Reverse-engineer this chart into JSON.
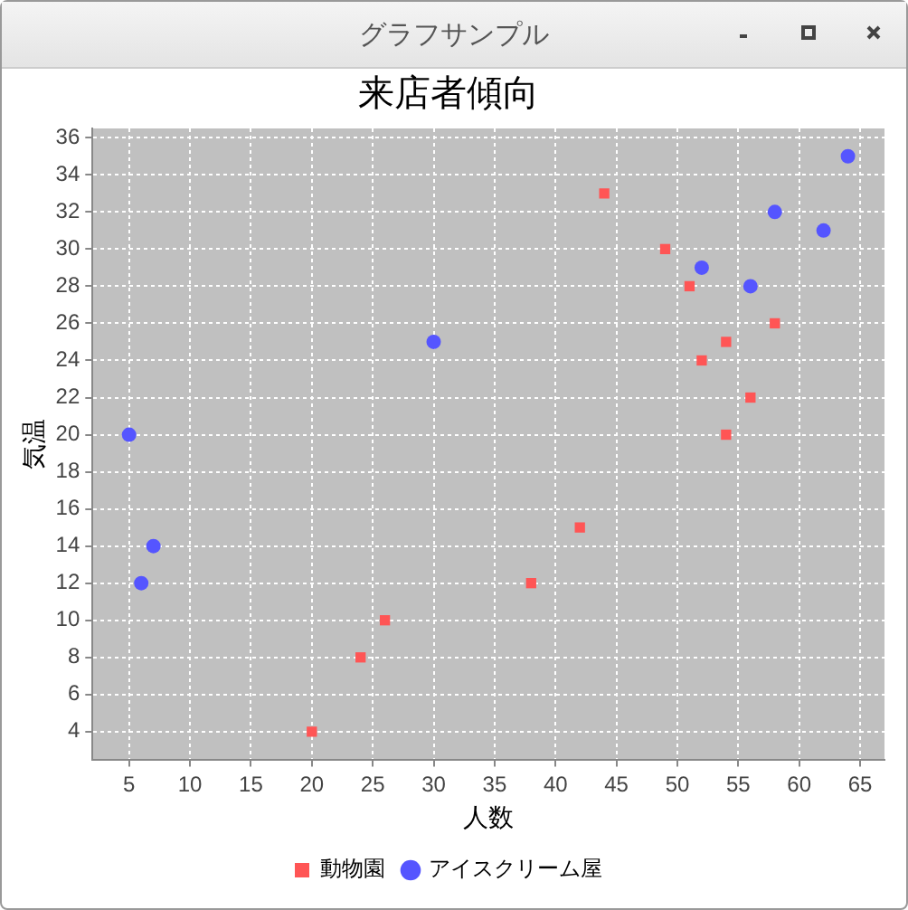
{
  "chart_data": {
    "type": "scatter",
    "title": "来店者傾向",
    "xlabel": "人数",
    "ylabel": "気温",
    "annotations": [
      "グラフサンプル"
    ],
    "series": [
      {
        "name": "動物園",
        "color": "#ff5555",
        "marker": "square",
        "x": [
          20,
          24,
          26,
          38,
          42,
          44,
          49,
          51,
          52,
          54,
          54,
          56,
          58
        ],
        "values": [
          4,
          8,
          10,
          12,
          15,
          33,
          30,
          28,
          24,
          25,
          20,
          22,
          26
        ]
      },
      {
        "name": "アイスクリーム屋",
        "color": "#5555ff",
        "marker": "circle",
        "x": [
          5,
          7,
          6,
          30,
          52,
          56,
          58,
          62,
          64
        ],
        "values": [
          20,
          14,
          12,
          25,
          29,
          28,
          32,
          31,
          35
        ]
      }
    ],
    "xlim": [
      2,
      67
    ],
    "xticks": [
      5,
      10,
      15,
      20,
      25,
      30,
      35,
      40,
      45,
      50,
      55,
      60,
      65
    ],
    "ylim": [
      2.5,
      36.5
    ],
    "yticks": [
      4,
      6,
      8,
      10,
      12,
      14,
      16,
      18,
      20,
      22,
      24,
      26,
      28,
      30,
      32,
      34,
      36
    ],
    "grid": true,
    "legend": "bottom"
  }
}
